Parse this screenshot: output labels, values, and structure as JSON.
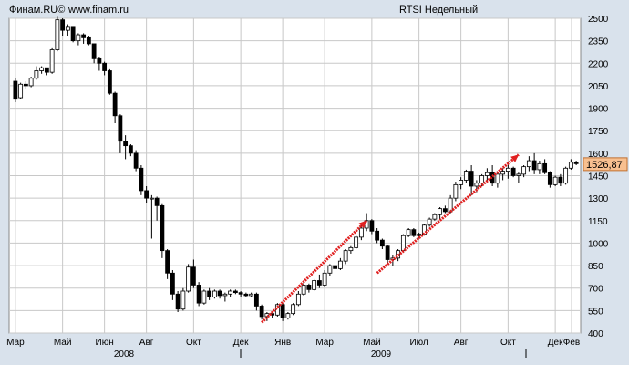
{
  "header": {
    "source": "Финам.RU©",
    "url": "www.finam.ru",
    "title": "RTSI Недельный"
  },
  "last_price_label": "1526,87",
  "colors": {
    "background": "#d9e2ec",
    "plot_background": "#ffffff",
    "grid": "#c8c8c8",
    "up_candle": "#ffffff",
    "down_candle": "#000000",
    "trend_arrow": "#e02020",
    "price_tag": "#f8c090"
  },
  "chart_data": {
    "type": "candlestick",
    "title": "RTSI Недельный",
    "y_axis_side": "right",
    "ylim": [
      400,
      2500
    ],
    "y_ticks": [
      400,
      550,
      700,
      850,
      1000,
      1150,
      1300,
      1450,
      1600,
      1750,
      1900,
      2050,
      2200,
      2350,
      2500
    ],
    "x_month_labels": [
      "Мар",
      "Май",
      "Июн",
      "Авг",
      "Окт",
      "Дек",
      "Янв",
      "Мар",
      "Май",
      "Июл",
      "Авг",
      "Окт",
      "Дек",
      "Фев"
    ],
    "x_year_labels": [
      "2008",
      "2009"
    ],
    "last_price": 1526.87,
    "candles": [
      [
        2080,
        2100,
        1940,
        1960
      ],
      [
        1970,
        2070,
        1960,
        2060
      ],
      [
        2060,
        2080,
        2030,
        2050
      ],
      [
        2050,
        2110,
        2040,
        2100
      ],
      [
        2100,
        2180,
        2090,
        2150
      ],
      [
        2150,
        2180,
        2130,
        2170
      ],
      [
        2170,
        2150,
        2120,
        2140
      ],
      [
        2140,
        2300,
        2130,
        2290
      ],
      [
        2290,
        2510,
        2280,
        2490
      ],
      [
        2490,
        2500,
        2380,
        2420
      ],
      [
        2420,
        2460,
        2380,
        2440
      ],
      [
        2440,
        2440,
        2340,
        2350
      ],
      [
        2350,
        2400,
        2320,
        2390
      ],
      [
        2390,
        2400,
        2330,
        2370
      ],
      [
        2370,
        2380,
        2320,
        2330
      ],
      [
        2330,
        2330,
        2200,
        2230
      ],
      [
        2230,
        2240,
        2150,
        2200
      ],
      [
        2200,
        2210,
        2120,
        2150
      ],
      [
        2150,
        2160,
        1990,
        2000
      ],
      [
        2000,
        2010,
        1800,
        1850
      ],
      [
        1850,
        1860,
        1600,
        1680
      ],
      [
        1680,
        1720,
        1560,
        1650
      ],
      [
        1650,
        1660,
        1580,
        1600
      ],
      [
        1600,
        1620,
        1480,
        1500
      ],
      [
        1500,
        1520,
        1320,
        1350
      ],
      [
        1350,
        1380,
        1270,
        1300
      ],
      [
        1300,
        1320,
        1030,
        1300
      ],
      [
        1300,
        1310,
        1150,
        1250
      ],
      [
        1250,
        1260,
        900,
        950
      ],
      [
        950,
        960,
        760,
        800
      ],
      [
        800,
        820,
        620,
        660
      ],
      [
        660,
        680,
        540,
        560
      ],
      [
        560,
        700,
        550,
        680
      ],
      [
        680,
        860,
        670,
        840
      ],
      [
        840,
        890,
        700,
        720
      ],
      [
        720,
        740,
        580,
        600
      ],
      [
        600,
        690,
        590,
        680
      ],
      [
        680,
        700,
        620,
        640
      ],
      [
        640,
        690,
        630,
        680
      ],
      [
        680,
        690,
        630,
        650
      ],
      [
        650,
        670,
        610,
        660
      ],
      [
        660,
        690,
        640,
        680
      ],
      [
        680,
        690,
        660,
        670
      ],
      [
        670,
        680,
        640,
        660
      ],
      [
        660,
        670,
        640,
        650
      ],
      [
        650,
        670,
        640,
        660
      ],
      [
        660,
        670,
        550,
        580
      ],
      [
        580,
        590,
        490,
        510
      ],
      [
        510,
        540,
        480,
        530
      ],
      [
        530,
        540,
        500,
        520
      ],
      [
        520,
        600,
        510,
        590
      ],
      [
        590,
        600,
        480,
        500
      ],
      [
        500,
        540,
        490,
        530
      ],
      [
        530,
        600,
        520,
        590
      ],
      [
        590,
        680,
        580,
        660
      ],
      [
        660,
        740,
        650,
        720
      ],
      [
        720,
        730,
        670,
        690
      ],
      [
        690,
        760,
        680,
        750
      ],
      [
        750,
        790,
        700,
        720
      ],
      [
        720,
        820,
        710,
        800
      ],
      [
        800,
        860,
        780,
        850
      ],
      [
        850,
        840,
        830,
        830
      ],
      [
        830,
        900,
        820,
        880
      ],
      [
        880,
        960,
        860,
        950
      ],
      [
        950,
        980,
        930,
        970
      ],
      [
        970,
        1050,
        960,
        1040
      ],
      [
        1040,
        1120,
        1020,
        1100
      ],
      [
        1100,
        1200,
        1080,
        1150
      ],
      [
        1150,
        1160,
        1060,
        1080
      ],
      [
        1080,
        1100,
        1000,
        1020
      ],
      [
        1020,
        1030,
        960,
        980
      ],
      [
        980,
        990,
        860,
        890
      ],
      [
        890,
        920,
        850,
        900
      ],
      [
        900,
        960,
        880,
        950
      ],
      [
        950,
        1060,
        940,
        1050
      ],
      [
        1050,
        1100,
        1040,
        1090
      ],
      [
        1090,
        1100,
        1040,
        1050
      ],
      [
        1050,
        1070,
        1030,
        1060
      ],
      [
        1060,
        1130,
        1050,
        1120
      ],
      [
        1120,
        1170,
        1110,
        1160
      ],
      [
        1160,
        1200,
        1150,
        1190
      ],
      [
        1190,
        1240,
        1160,
        1230
      ],
      [
        1230,
        1250,
        1200,
        1210
      ],
      [
        1210,
        1320,
        1200,
        1300
      ],
      [
        1300,
        1410,
        1280,
        1390
      ],
      [
        1390,
        1440,
        1360,
        1420
      ],
      [
        1420,
        1490,
        1400,
        1480
      ],
      [
        1480,
        1520,
        1320,
        1380
      ],
      [
        1380,
        1420,
        1340,
        1400
      ],
      [
        1400,
        1460,
        1380,
        1450
      ],
      [
        1450,
        1500,
        1410,
        1470
      ],
      [
        1470,
        1520,
        1380,
        1400
      ],
      [
        1400,
        1470,
        1370,
        1460
      ],
      [
        1460,
        1500,
        1420,
        1480
      ],
      [
        1480,
        1540,
        1430,
        1500
      ],
      [
        1500,
        1510,
        1440,
        1450
      ],
      [
        1450,
        1470,
        1400,
        1460
      ],
      [
        1460,
        1520,
        1440,
        1510
      ],
      [
        1510,
        1580,
        1480,
        1550
      ],
      [
        1550,
        1600,
        1460,
        1490
      ],
      [
        1490,
        1550,
        1460,
        1530
      ],
      [
        1530,
        1560,
        1460,
        1470
      ],
      [
        1470,
        1480,
        1370,
        1390
      ],
      [
        1390,
        1450,
        1380,
        1440
      ],
      [
        1440,
        1460,
        1380,
        1400
      ],
      [
        1400,
        1510,
        1390,
        1500
      ],
      [
        1500,
        1560,
        1490,
        1540
      ],
      [
        1540,
        1550,
        1520,
        1530
      ]
    ],
    "trend_lines": [
      {
        "from": [
          47,
          470
        ],
        "to": [
          67,
          1150
        ]
      },
      {
        "from": [
          69,
          800
        ],
        "to": [
          96,
          1590
        ]
      }
    ]
  }
}
